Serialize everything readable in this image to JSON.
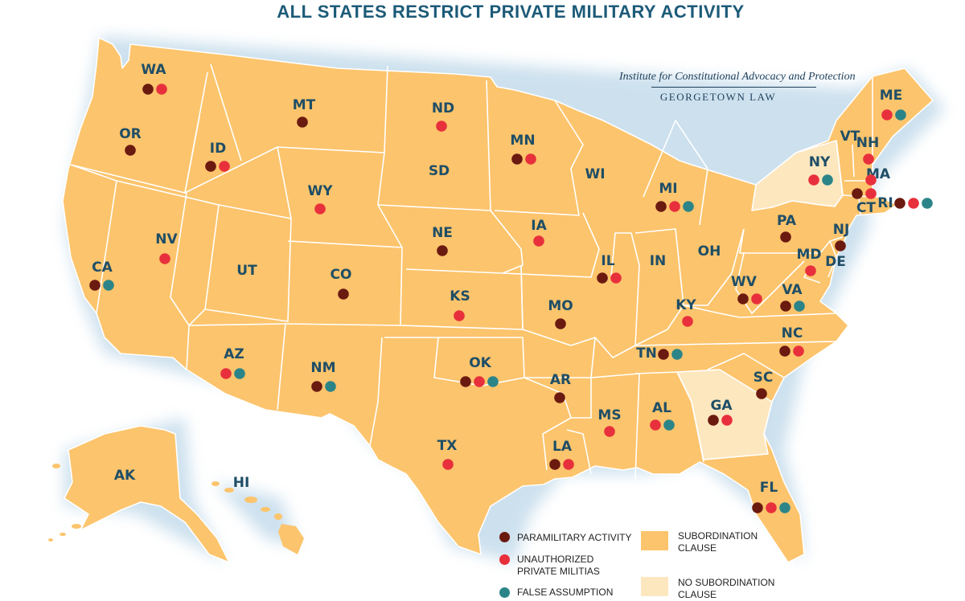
{
  "title": "ALL STATES RESTRICT PRIVATE MILITARY ACTIVITY",
  "institute": {
    "name": "Institute for Constitutional Advocacy and Protection",
    "subtitle": "GEORGETOWN LAW"
  },
  "colors": {
    "paramilitary": "#6b1a10",
    "militias": "#e8303c",
    "false_assumption": "#2b8588",
    "subordination": "#fcc46c",
    "no_subordination": "#fde7bf",
    "label": "#1f4e66",
    "title": "#1c5a78"
  },
  "legend": {
    "paramilitary": "PARAMILITARY ACTIVITY",
    "militias_line1": "UNAUTHORIZED",
    "militias_line2": "PRIVATE MILITIAS",
    "false_assumption": "FALSE ASSUMPTION",
    "subordination_line1": "SUBORDINATION",
    "subordination_line2": "CLAUSE",
    "no_subordination_line1": "NO SUBORDINATION",
    "no_subordination_line2": "CLAUSE"
  },
  "states": [
    {
      "abbr": "WA",
      "subordination": true,
      "markers": [
        "paramilitary",
        "militias"
      ]
    },
    {
      "abbr": "OR",
      "subordination": true,
      "markers": [
        "paramilitary"
      ]
    },
    {
      "abbr": "CA",
      "subordination": true,
      "markers": [
        "paramilitary",
        "false_assumption"
      ]
    },
    {
      "abbr": "ID",
      "subordination": true,
      "markers": [
        "paramilitary",
        "militias"
      ]
    },
    {
      "abbr": "NV",
      "subordination": true,
      "markers": [
        "militias"
      ]
    },
    {
      "abbr": "UT",
      "subordination": true,
      "markers": []
    },
    {
      "abbr": "AZ",
      "subordination": true,
      "markers": [
        "militias",
        "false_assumption"
      ]
    },
    {
      "abbr": "MT",
      "subordination": true,
      "markers": [
        "paramilitary"
      ]
    },
    {
      "abbr": "WY",
      "subordination": true,
      "markers": [
        "militias"
      ]
    },
    {
      "abbr": "CO",
      "subordination": true,
      "markers": [
        "paramilitary"
      ]
    },
    {
      "abbr": "NM",
      "subordination": true,
      "markers": [
        "paramilitary",
        "false_assumption"
      ]
    },
    {
      "abbr": "ND",
      "subordination": true,
      "markers": [
        "militias"
      ]
    },
    {
      "abbr": "SD",
      "subordination": true,
      "markers": []
    },
    {
      "abbr": "NE",
      "subordination": true,
      "markers": [
        "paramilitary"
      ]
    },
    {
      "abbr": "KS",
      "subordination": true,
      "markers": [
        "militias"
      ]
    },
    {
      "abbr": "OK",
      "subordination": true,
      "markers": [
        "paramilitary",
        "militias",
        "false_assumption"
      ]
    },
    {
      "abbr": "TX",
      "subordination": true,
      "markers": [
        "militias"
      ]
    },
    {
      "abbr": "MN",
      "subordination": true,
      "markers": [
        "paramilitary",
        "militias"
      ]
    },
    {
      "abbr": "IA",
      "subordination": true,
      "markers": [
        "militias"
      ]
    },
    {
      "abbr": "MO",
      "subordination": true,
      "markers": [
        "paramilitary"
      ]
    },
    {
      "abbr": "AR",
      "subordination": true,
      "markers": [
        "paramilitary"
      ]
    },
    {
      "abbr": "LA",
      "subordination": true,
      "markers": [
        "paramilitary",
        "militias"
      ]
    },
    {
      "abbr": "WI",
      "subordination": true,
      "markers": []
    },
    {
      "abbr": "IL",
      "subordination": true,
      "markers": [
        "paramilitary",
        "militias"
      ]
    },
    {
      "abbr": "MI",
      "subordination": true,
      "markers": [
        "paramilitary",
        "militias",
        "false_assumption"
      ]
    },
    {
      "abbr": "IN",
      "subordination": true,
      "markers": []
    },
    {
      "abbr": "OH",
      "subordination": true,
      "markers": []
    },
    {
      "abbr": "KY",
      "subordination": true,
      "markers": [
        "militias"
      ]
    },
    {
      "abbr": "TN",
      "subordination": true,
      "markers": [
        "paramilitary",
        "false_assumption"
      ]
    },
    {
      "abbr": "MS",
      "subordination": true,
      "markers": [
        "militias"
      ]
    },
    {
      "abbr": "AL",
      "subordination": true,
      "markers": [
        "militias",
        "false_assumption"
      ]
    },
    {
      "abbr": "GA",
      "subordination": false,
      "markers": [
        "paramilitary",
        "militias"
      ]
    },
    {
      "abbr": "FL",
      "subordination": true,
      "markers": [
        "paramilitary",
        "militias",
        "false_assumption"
      ]
    },
    {
      "abbr": "SC",
      "subordination": true,
      "markers": [
        "paramilitary"
      ]
    },
    {
      "abbr": "NC",
      "subordination": true,
      "markers": [
        "paramilitary",
        "militias"
      ]
    },
    {
      "abbr": "VA",
      "subordination": true,
      "markers": [
        "paramilitary",
        "false_assumption"
      ]
    },
    {
      "abbr": "WV",
      "subordination": true,
      "markers": [
        "paramilitary",
        "militias"
      ]
    },
    {
      "abbr": "PA",
      "subordination": true,
      "markers": [
        "paramilitary"
      ]
    },
    {
      "abbr": "NY",
      "subordination": false,
      "markers": [
        "militias",
        "false_assumption"
      ]
    },
    {
      "abbr": "NJ",
      "subordination": true,
      "markers": [
        "paramilitary"
      ]
    },
    {
      "abbr": "MD",
      "subordination": true,
      "markers": [
        "militias"
      ]
    },
    {
      "abbr": "DE",
      "subordination": true,
      "markers": []
    },
    {
      "abbr": "VT",
      "subordination": true,
      "markers": []
    },
    {
      "abbr": "NH",
      "subordination": true,
      "markers": [
        "militias"
      ]
    },
    {
      "abbr": "ME",
      "subordination": true,
      "markers": [
        "militias",
        "false_assumption"
      ]
    },
    {
      "abbr": "MA",
      "subordination": true,
      "markers": [
        "militias"
      ]
    },
    {
      "abbr": "CT",
      "subordination": true,
      "markers": [
        "paramilitary",
        "militias"
      ]
    },
    {
      "abbr": "RI",
      "subordination": true,
      "markers": [
        "paramilitary",
        "militias",
        "false_assumption"
      ]
    },
    {
      "abbr": "AK",
      "subordination": true,
      "markers": []
    },
    {
      "abbr": "HI",
      "subordination": true,
      "markers": []
    }
  ]
}
